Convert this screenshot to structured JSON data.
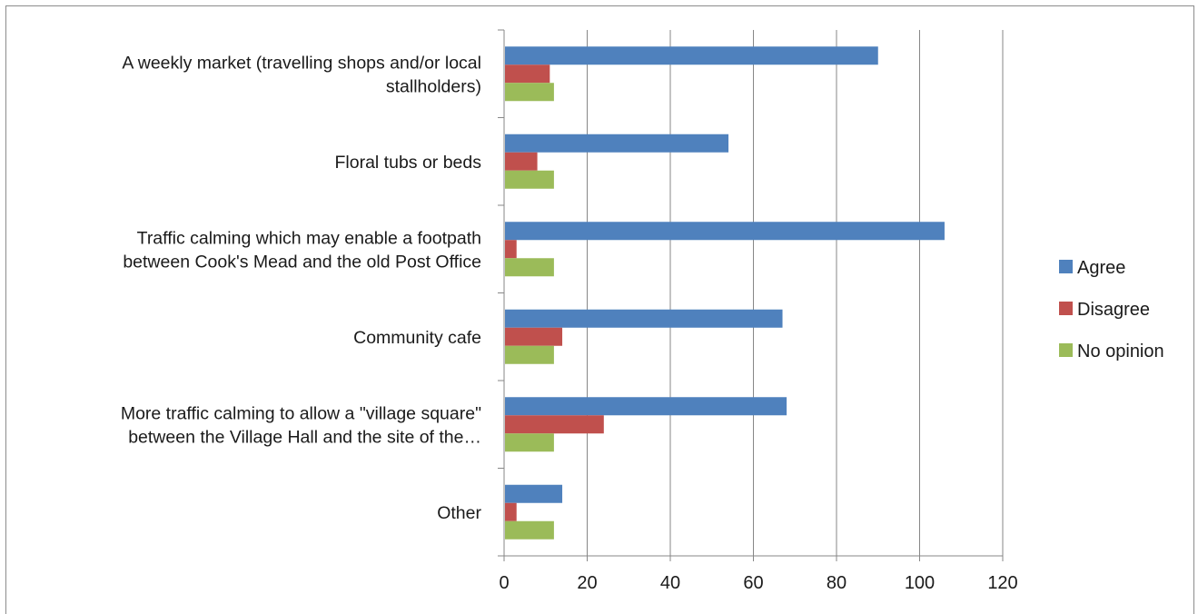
{
  "chart_data": {
    "type": "bar",
    "orientation": "horizontal",
    "title": "",
    "xlabel": "",
    "ylabel": "",
    "categories": [
      [
        "A weekly market (travelling shops and/or local",
        "stallholders)"
      ],
      [
        "Floral tubs or beds"
      ],
      [
        "Traffic calming which may enable a footpath",
        "between Cook's Mead and the old Post Office"
      ],
      [
        "Community cafe"
      ],
      [
        "More traffic calming to allow a \"village square\"",
        "between the Village Hall and the site of the…"
      ],
      [
        "Other"
      ]
    ],
    "series": [
      {
        "name": "Agree",
        "color": "#4f81bd",
        "values": [
          90,
          54,
          106,
          67,
          68,
          14
        ]
      },
      {
        "name": "Disagree",
        "color": "#c0504d",
        "values": [
          11,
          8,
          3,
          14,
          24,
          3
        ]
      },
      {
        "name": "No opinion",
        "color": "#9bbb59",
        "values": [
          12,
          12,
          12,
          12,
          12,
          12
        ]
      }
    ],
    "xlim": [
      0,
      120
    ],
    "xticks": [
      "0",
      "20",
      "40",
      "60",
      "80",
      "100",
      "120"
    ],
    "grid": "vertical",
    "legend_position": "right"
  }
}
